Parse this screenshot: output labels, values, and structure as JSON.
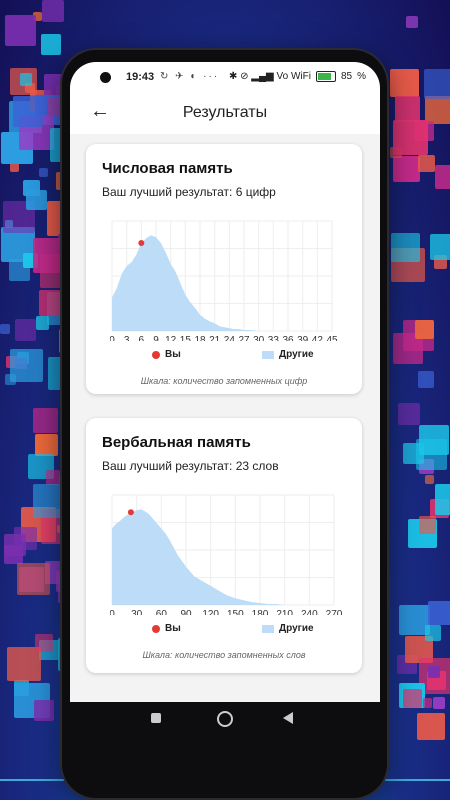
{
  "status_bar": {
    "time": "19:43",
    "left_icons": "↻ ✈ ◐ ···",
    "right_icons": "✱ ⊘ ▂▄▆ Vo WiFi",
    "battery": "85",
    "battery_level": 0.85
  },
  "app_bar": {
    "back_icon": "arrow-left-icon",
    "title": "Результаты"
  },
  "cards": [
    {
      "title": "Числовая память",
      "subtitle": "Ваш лучший результат: 6 цифр",
      "legend_you": "Вы",
      "legend_others": "Другие",
      "scale_note": "Шкала: количество запомненных цифр"
    },
    {
      "title": "Вербальная память",
      "subtitle": "Ваш лучший результат: 23 слов",
      "legend_you": "Вы",
      "legend_others": "Другие",
      "scale_note": "Шкала: количество запомненных слов"
    }
  ],
  "colors": {
    "you": "#e53935",
    "others": "#bcdcf7",
    "accent": "#3ab54a"
  },
  "chart_data": [
    {
      "type": "area",
      "x": [
        0,
        1,
        2,
        3,
        4,
        5,
        6,
        7,
        8,
        9,
        10,
        11,
        12,
        13,
        14,
        15,
        16,
        17,
        18,
        19,
        20,
        21,
        22,
        23,
        24,
        25,
        26,
        27,
        28,
        30,
        45
      ],
      "series": [
        {
          "name": "Другие",
          "values": [
            0.35,
            0.45,
            0.6,
            0.68,
            0.72,
            0.8,
            0.92,
            0.97,
            1.0,
            0.98,
            0.92,
            0.82,
            0.7,
            0.62,
            0.5,
            0.38,
            0.3,
            0.24,
            0.17,
            0.13,
            0.1,
            0.08,
            0.05,
            0.04,
            0.03,
            0.02,
            0.02,
            0.01,
            0.01,
            0.0,
            0.0
          ]
        }
      ],
      "you": {
        "name": "Вы",
        "x": 6,
        "y": 0.92
      },
      "xticks": [
        "0",
        "3",
        "6",
        "9",
        "12",
        "15",
        "18",
        "21",
        "24",
        "27",
        "30",
        "33",
        "36",
        "39",
        "42",
        "45"
      ],
      "xlim": [
        0,
        45
      ],
      "ylim": [
        0,
        1.15
      ],
      "grid": true,
      "legend": "bottom"
    },
    {
      "type": "area",
      "x": [
        0,
        5,
        10,
        15,
        20,
        25,
        30,
        35,
        40,
        45,
        50,
        55,
        60,
        65,
        70,
        75,
        80,
        85,
        90,
        95,
        100,
        110,
        120,
        130,
        140,
        150,
        160,
        170,
        180,
        190,
        200,
        210,
        270
      ],
      "series": [
        {
          "name": "Другие",
          "values": [
            0.8,
            0.85,
            0.88,
            0.92,
            0.95,
            0.97,
            0.99,
            1.0,
            0.98,
            0.95,
            0.9,
            0.85,
            0.8,
            0.75,
            0.68,
            0.6,
            0.52,
            0.46,
            0.4,
            0.35,
            0.3,
            0.25,
            0.2,
            0.15,
            0.1,
            0.07,
            0.05,
            0.03,
            0.02,
            0.01,
            0.01,
            0.0,
            0.0
          ]
        }
      ],
      "you": {
        "name": "Вы",
        "x": 23,
        "y": 0.97
      },
      "xticks": [
        "0",
        "30",
        "60",
        "90",
        "120",
        "150",
        "180",
        "210",
        "240",
        "270"
      ],
      "xlim": [
        0,
        270
      ],
      "ylim": [
        0,
        1.15
      ],
      "grid": true,
      "legend": "bottom"
    }
  ]
}
